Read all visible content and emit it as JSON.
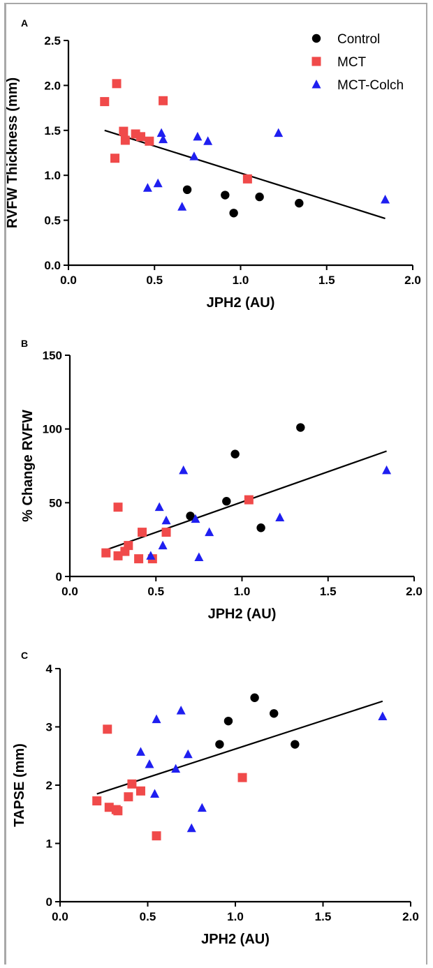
{
  "legend": {
    "items": [
      {
        "label": "Control",
        "marker": "circle",
        "color": "#000000"
      },
      {
        "label": "MCT",
        "marker": "square",
        "color": "#f04a4a"
      },
      {
        "label": "MCT-Colch",
        "marker": "triangle",
        "color": "#1f1ff0"
      }
    ]
  },
  "chart_data": [
    {
      "panel": "A",
      "type": "scatter",
      "xlabel": "JPH2 (AU)",
      "ylabel": "RVFW  Thickness (mm)",
      "xlim": [
        0.0,
        2.0
      ],
      "ylim": [
        0.0,
        2.5
      ],
      "xticks": [
        "0.0",
        "0.5",
        "1.0",
        "1.5",
        "2.0"
      ],
      "yticks": [
        "0.0",
        "0.5",
        "1.0",
        "1.5",
        "2.0",
        "2.5"
      ],
      "grid": false,
      "legend_position": "top-right",
      "series": [
        {
          "name": "Control",
          "points": [
            [
              0.69,
              0.84
            ],
            [
              0.91,
              0.78
            ],
            [
              0.96,
              0.58
            ],
            [
              1.11,
              0.76
            ],
            [
              1.34,
              0.69
            ]
          ]
        },
        {
          "name": "MCT",
          "points": [
            [
              0.21,
              1.82
            ],
            [
              0.28,
              2.02
            ],
            [
              0.27,
              1.19
            ],
            [
              0.32,
              1.49
            ],
            [
              0.33,
              1.39
            ],
            [
              0.39,
              1.46
            ],
            [
              0.42,
              1.43
            ],
            [
              0.47,
              1.38
            ],
            [
              0.55,
              1.83
            ],
            [
              1.04,
              0.96
            ]
          ]
        },
        {
          "name": "MCT-Colch",
          "points": [
            [
              0.46,
              0.86
            ],
            [
              0.52,
              0.91
            ],
            [
              0.54,
              1.47
            ],
            [
              0.55,
              1.4
            ],
            [
              0.66,
              0.65
            ],
            [
              0.73,
              1.21
            ],
            [
              0.75,
              1.43
            ],
            [
              0.81,
              1.38
            ],
            [
              1.22,
              1.47
            ],
            [
              1.84,
              0.73
            ]
          ]
        }
      ],
      "regression_line": {
        "x": [
          0.21,
          1.84
        ],
        "y": [
          1.5,
          0.52
        ]
      }
    },
    {
      "panel": "B",
      "type": "scatter",
      "xlabel": "JPH2 (AU)",
      "ylabel": "% Change RVFW",
      "xlim": [
        0.0,
        2.0
      ],
      "ylim": [
        0,
        150
      ],
      "xticks": [
        "0.0",
        "0.5",
        "1.0",
        "1.5",
        "2.0"
      ],
      "yticks": [
        "0",
        "50",
        "100",
        "150"
      ],
      "grid": false,
      "series": [
        {
          "name": "Control",
          "points": [
            [
              0.7,
              41
            ],
            [
              0.91,
              51
            ],
            [
              0.96,
              83
            ],
            [
              1.11,
              33
            ],
            [
              1.34,
              101
            ]
          ]
        },
        {
          "name": "MCT",
          "points": [
            [
              0.21,
              16
            ],
            [
              0.28,
              47
            ],
            [
              0.28,
              14
            ],
            [
              0.32,
              17
            ],
            [
              0.34,
              21
            ],
            [
              0.4,
              12
            ],
            [
              0.42,
              30
            ],
            [
              0.48,
              12
            ],
            [
              0.56,
              30
            ],
            [
              1.04,
              52
            ]
          ]
        },
        {
          "name": "MCT-Colch",
          "points": [
            [
              0.47,
              14
            ],
            [
              0.52,
              47
            ],
            [
              0.54,
              21
            ],
            [
              0.56,
              38
            ],
            [
              0.66,
              72
            ],
            [
              0.73,
              39
            ],
            [
              0.75,
              13
            ],
            [
              0.81,
              30
            ],
            [
              1.22,
              40
            ],
            [
              1.84,
              72
            ]
          ]
        }
      ],
      "regression_line": {
        "x": [
          0.21,
          1.84
        ],
        "y": [
          18,
          85
        ]
      }
    },
    {
      "panel": "C",
      "type": "scatter",
      "xlabel": "JPH2 (AU)",
      "ylabel": "TAPSE (mm)",
      "xlim": [
        0.0,
        2.0
      ],
      "ylim": [
        0,
        4
      ],
      "xticks": [
        "0.0",
        "0.5",
        "1.0",
        "1.5",
        "2.0"
      ],
      "yticks": [
        "0",
        "1",
        "2",
        "3",
        "4"
      ],
      "grid": false,
      "series": [
        {
          "name": "Control",
          "points": [
            [
              0.91,
              2.7
            ],
            [
              0.96,
              3.1
            ],
            [
              1.11,
              3.5
            ],
            [
              1.22,
              3.23
            ],
            [
              1.34,
              2.7
            ]
          ]
        },
        {
          "name": "MCT",
          "points": [
            [
              0.21,
              1.73
            ],
            [
              0.27,
              2.96
            ],
            [
              0.28,
              1.62
            ],
            [
              0.32,
              1.58
            ],
            [
              0.33,
              1.56
            ],
            [
              0.39,
              1.8
            ],
            [
              0.41,
              2.02
            ],
            [
              0.46,
              1.9
            ],
            [
              0.55,
              1.13
            ],
            [
              1.04,
              2.13
            ]
          ]
        },
        {
          "name": "MCT-Colch",
          "points": [
            [
              0.46,
              2.57
            ],
            [
              0.51,
              2.36
            ],
            [
              0.54,
              1.85
            ],
            [
              0.55,
              3.13
            ],
            [
              0.66,
              2.28
            ],
            [
              0.69,
              3.28
            ],
            [
              0.73,
              2.53
            ],
            [
              0.75,
              1.26
            ],
            [
              0.81,
              1.61
            ],
            [
              1.84,
              3.18
            ]
          ]
        }
      ],
      "regression_line": {
        "x": [
          0.21,
          1.84
        ],
        "y": [
          1.85,
          3.44
        ]
      }
    }
  ]
}
